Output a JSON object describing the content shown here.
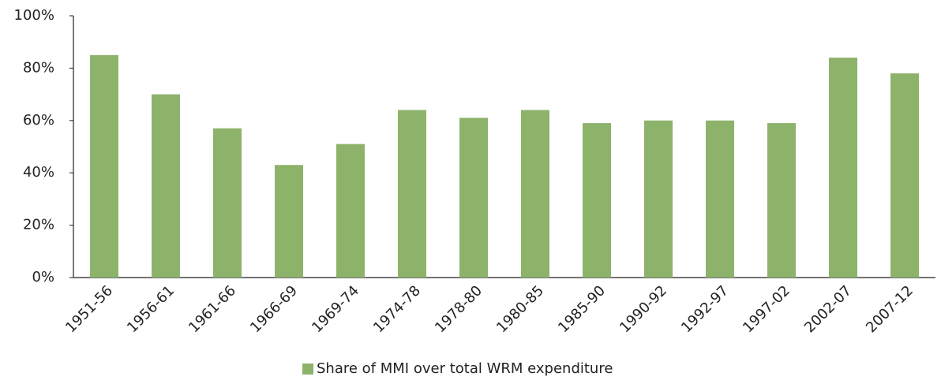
{
  "chart_data": {
    "type": "bar",
    "categories": [
      "1951-56",
      "1956-61",
      "1961-66",
      "1966-69",
      "1969-74",
      "1974-78",
      "1978-80",
      "1980-85",
      "1985-90",
      "1990-92",
      "1992-97",
      "1997-02",
      "2002-07",
      "2007-12"
    ],
    "series": [
      {
        "name": "Share of MMI over total WRM expenditure",
        "color": "#8db36b",
        "values": [
          85,
          70,
          57,
          43,
          51,
          64,
          61,
          64,
          59,
          60,
          60,
          59,
          84,
          78
        ]
      }
    ],
    "ylim": [
      0,
      100
    ],
    "yticks": [
      {
        "value": 0,
        "label": "0%"
      },
      {
        "value": 20,
        "label": "20%"
      },
      {
        "value": 40,
        "label": "40%"
      },
      {
        "value": 60,
        "label": "60%"
      },
      {
        "value": 80,
        "label": "80%"
      },
      {
        "value": 100,
        "label": "100%"
      }
    ],
    "grid": false,
    "legend": "bottom"
  }
}
